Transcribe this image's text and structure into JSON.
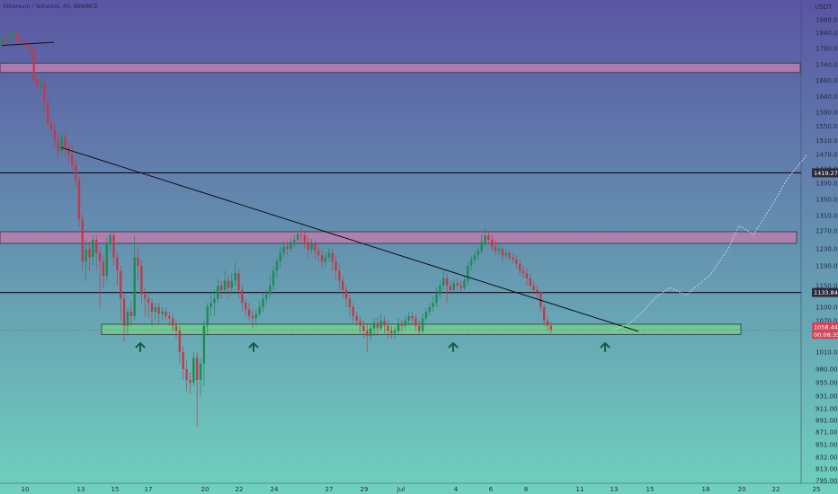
{
  "header": {
    "symbol_line": "Ethereum / TetherUS, 4H, BINANCE",
    "currency": "USDT"
  },
  "colors": {
    "bg_top": "#5a55a3",
    "bg_bottom": "#6fd1bd",
    "up_candle": "#1f8a55",
    "down_candle": "#c03a4c",
    "resistance_zone": "#b77fae",
    "support_zone": "#6fcf8f",
    "level_line": "#0e0e14",
    "trend_line": "#0e0e14",
    "arrow": "#175a4b",
    "price_tag": "#d0465a",
    "level_tag": "#2b2b3b",
    "projection": "#c8d8f0"
  },
  "chart_data": {
    "type": "candlestick",
    "price_scale": {
      "ylim": [
        790,
        1990
      ],
      "tick_labels": [
        "1880.00",
        "1840.00",
        "1790.00",
        "1740.00",
        "1690.00",
        "1640.00",
        "1590.00",
        "1550.00",
        "1510.00",
        "1470.00",
        "1430.00",
        "1390.00",
        "1350.00",
        "1310.00",
        "1270.00",
        "1230.00",
        "1190.00",
        "1150.00",
        "1100.00",
        "1070.00",
        "1040.00",
        "1010.00",
        "980.00",
        "955.00",
        "931.00",
        "911.00",
        "891.00",
        "871.00",
        "851.00",
        "832.00",
        "813.00",
        "795.00"
      ],
      "tick_values": [
        1880,
        1840,
        1790,
        1740,
        1690,
        1640,
        1590,
        1550,
        1510,
        1470,
        1430,
        1390,
        1350,
        1310,
        1270,
        1230,
        1190,
        1150,
        1100,
        1070,
        1040,
        1010,
        980,
        955,
        931,
        911,
        891,
        871,
        851,
        832,
        813,
        795
      ]
    },
    "time_scale": {
      "xlim": [
        0,
        890
      ],
      "tick_labels": [
        "10",
        "13",
        "15",
        "17",
        "20",
        "22",
        "24",
        "27",
        "29",
        "Jul",
        "4",
        "6",
        "8",
        "11",
        "13",
        "15",
        "18",
        "20",
        "22",
        "25"
      ],
      "tick_values": [
        28,
        90,
        128,
        165,
        228,
        266,
        305,
        366,
        405,
        446,
        507,
        546,
        585,
        645,
        683,
        723,
        785,
        825,
        863,
        908
      ]
    },
    "price_tags": [
      {
        "label": "1419.27",
        "value": 1419
      },
      {
        "label": "1133.84",
        "value": 1134
      },
      {
        "label": "1058.44",
        "value": 1058
      },
      {
        "label": "00:08:35",
        "value": 1043
      }
    ],
    "zones": [
      {
        "kind": "resistance",
        "low": 1715,
        "high": 1745,
        "x_start": 0,
        "x_end": 890
      },
      {
        "kind": "resistance",
        "low": 1242,
        "high": 1268,
        "x_start": 0,
        "x_end": 886
      },
      {
        "kind": "support",
        "low": 1043,
        "high": 1063,
        "x_start": 113,
        "x_end": 824
      }
    ],
    "horizontal_levels": [
      1419,
      1134
    ],
    "current_price_line": 1052,
    "trend_lines": [
      {
        "x1": 2,
        "y1": 1800,
        "x2": 60,
        "y2": 1810
      },
      {
        "x1": 68,
        "y1": 1490,
        "x2": 710,
        "y2": 1049
      }
    ],
    "up_arrows": [
      156,
      282,
      504,
      673
    ],
    "projection_path": [
      [
        682,
        1052
      ],
      [
        700,
        1064
      ],
      [
        715,
        1090
      ],
      [
        728,
        1120
      ],
      [
        745,
        1146
      ],
      [
        763,
        1128
      ],
      [
        790,
        1172
      ],
      [
        810,
        1230
      ],
      [
        822,
        1284
      ],
      [
        838,
        1262
      ],
      [
        860,
        1340
      ],
      [
        875,
        1400
      ],
      [
        897,
        1468
      ]
    ],
    "candle_x_start": 3,
    "candle_step": 3.86,
    "candles": [
      [
        1800,
        1820,
        1780,
        1835
      ],
      [
        1820,
        1815,
        1805,
        1830
      ],
      [
        1815,
        1830,
        1806,
        1840
      ],
      [
        1830,
        1840,
        1815,
        1852
      ],
      [
        1840,
        1818,
        1808,
        1848
      ],
      [
        1818,
        1812,
        1800,
        1826
      ],
      [
        1812,
        1808,
        1795,
        1822
      ],
      [
        1808,
        1800,
        1790,
        1815
      ],
      [
        1800,
        1790,
        1760,
        1810
      ],
      [
        1790,
        1690,
        1680,
        1800
      ],
      [
        1690,
        1670,
        1650,
        1705
      ],
      [
        1670,
        1680,
        1650,
        1700
      ],
      [
        1680,
        1620,
        1595,
        1690
      ],
      [
        1620,
        1560,
        1545,
        1630
      ],
      [
        1560,
        1540,
        1520,
        1580
      ],
      [
        1540,
        1510,
        1490,
        1560
      ],
      [
        1510,
        1480,
        1455,
        1530
      ],
      [
        1480,
        1520,
        1470,
        1535
      ],
      [
        1520,
        1490,
        1460,
        1535
      ],
      [
        1490,
        1470,
        1445,
        1505
      ],
      [
        1470,
        1440,
        1425,
        1495
      ],
      [
        1440,
        1400,
        1380,
        1455
      ],
      [
        1400,
        1300,
        1280,
        1410
      ],
      [
        1300,
        1200,
        1180,
        1315
      ],
      [
        1200,
        1230,
        1160,
        1250
      ],
      [
        1230,
        1210,
        1180,
        1245
      ],
      [
        1210,
        1250,
        1190,
        1262
      ],
      [
        1250,
        1220,
        1180,
        1260
      ],
      [
        1220,
        1200,
        1100,
        1235
      ],
      [
        1200,
        1170,
        1145,
        1215
      ],
      [
        1170,
        1240,
        1160,
        1255
      ],
      [
        1240,
        1260,
        1220,
        1270
      ],
      [
        1260,
        1210,
        1190,
        1268
      ],
      [
        1210,
        1180,
        1150,
        1225
      ],
      [
        1180,
        1120,
        1070,
        1190
      ],
      [
        1120,
        1060,
        1030,
        1130
      ],
      [
        1060,
        1090,
        1040,
        1100
      ],
      [
        1090,
        1080,
        1060,
        1115
      ],
      [
        1080,
        1210,
        1070,
        1258
      ],
      [
        1210,
        1190,
        1160,
        1235
      ],
      [
        1190,
        1130,
        1110,
        1205
      ],
      [
        1130,
        1120,
        1080,
        1145
      ],
      [
        1120,
        1110,
        1075,
        1130
      ],
      [
        1110,
        1090,
        1060,
        1120
      ],
      [
        1090,
        1100,
        1070,
        1110
      ],
      [
        1100,
        1085,
        1065,
        1110
      ],
      [
        1085,
        1090,
        1070,
        1100
      ],
      [
        1090,
        1080,
        1070,
        1098
      ],
      [
        1080,
        1075,
        1060,
        1090
      ],
      [
        1075,
        1060,
        1050,
        1085
      ],
      [
        1060,
        1050,
        1035,
        1070
      ],
      [
        1050,
        1010,
        990,
        1060
      ],
      [
        1010,
        980,
        960,
        1020
      ],
      [
        980,
        960,
        940,
        995
      ],
      [
        960,
        955,
        935,
        975
      ],
      [
        955,
        1000,
        950,
        1010
      ],
      [
        1000,
        960,
        880,
        1010
      ],
      [
        960,
        990,
        930,
        1000
      ],
      [
        990,
        1060,
        950,
        1070
      ],
      [
        1060,
        1100,
        1040,
        1110
      ],
      [
        1100,
        1110,
        1080,
        1130
      ],
      [
        1110,
        1120,
        1080,
        1140
      ],
      [
        1120,
        1150,
        1110,
        1165
      ],
      [
        1150,
        1140,
        1120,
        1160
      ],
      [
        1140,
        1160,
        1130,
        1180
      ],
      [
        1160,
        1145,
        1120,
        1170
      ],
      [
        1145,
        1160,
        1130,
        1175
      ],
      [
        1160,
        1175,
        1150,
        1200
      ],
      [
        1175,
        1140,
        1120,
        1185
      ],
      [
        1140,
        1110,
        1090,
        1150
      ],
      [
        1110,
        1095,
        1080,
        1120
      ],
      [
        1095,
        1080,
        1070,
        1110
      ],
      [
        1080,
        1075,
        1055,
        1095
      ],
      [
        1075,
        1085,
        1060,
        1095
      ],
      [
        1085,
        1100,
        1080,
        1115
      ],
      [
        1100,
        1120,
        1090,
        1130
      ],
      [
        1120,
        1130,
        1110,
        1140
      ],
      [
        1130,
        1150,
        1120,
        1170
      ],
      [
        1150,
        1180,
        1140,
        1190
      ],
      [
        1180,
        1200,
        1165,
        1210
      ],
      [
        1200,
        1220,
        1185,
        1235
      ],
      [
        1220,
        1235,
        1210,
        1248
      ],
      [
        1235,
        1230,
        1215,
        1248
      ],
      [
        1230,
        1245,
        1222,
        1255
      ],
      [
        1245,
        1250,
        1232,
        1262
      ],
      [
        1250,
        1262,
        1240,
        1270
      ],
      [
        1262,
        1260,
        1245,
        1278
      ],
      [
        1260,
        1245,
        1230,
        1268
      ],
      [
        1245,
        1228,
        1210,
        1258
      ],
      [
        1228,
        1240,
        1218,
        1252
      ],
      [
        1240,
        1225,
        1205,
        1248
      ],
      [
        1225,
        1215,
        1200,
        1235
      ],
      [
        1215,
        1200,
        1185,
        1225
      ],
      [
        1200,
        1210,
        1190,
        1222
      ],
      [
        1210,
        1220,
        1200,
        1232
      ],
      [
        1220,
        1200,
        1180,
        1230
      ],
      [
        1200,
        1180,
        1160,
        1215
      ],
      [
        1180,
        1160,
        1140,
        1195
      ],
      [
        1160,
        1140,
        1120,
        1170
      ],
      [
        1140,
        1120,
        1100,
        1150
      ],
      [
        1120,
        1100,
        1080,
        1130
      ],
      [
        1100,
        1080,
        1065,
        1110
      ],
      [
        1080,
        1070,
        1060,
        1090
      ],
      [
        1070,
        1060,
        1045,
        1080
      ],
      [
        1060,
        1050,
        1035,
        1070
      ],
      [
        1050,
        1040,
        1010,
        1065
      ],
      [
        1040,
        1055,
        1030,
        1065
      ],
      [
        1055,
        1065,
        1040,
        1075
      ],
      [
        1065,
        1055,
        1040,
        1078
      ],
      [
        1055,
        1070,
        1050,
        1085
      ],
      [
        1070,
        1060,
        1045,
        1080
      ],
      [
        1060,
        1050,
        1035,
        1070
      ],
      [
        1050,
        1045,
        1035,
        1060
      ],
      [
        1045,
        1050,
        1035,
        1058
      ],
      [
        1050,
        1065,
        1045,
        1075
      ],
      [
        1065,
        1060,
        1050,
        1072
      ],
      [
        1060,
        1070,
        1055,
        1082
      ],
      [
        1070,
        1080,
        1060,
        1090
      ],
      [
        1080,
        1075,
        1060,
        1090
      ],
      [
        1075,
        1060,
        1050,
        1085
      ],
      [
        1060,
        1050,
        1040,
        1070
      ],
      [
        1050,
        1075,
        1045,
        1085
      ],
      [
        1075,
        1090,
        1070,
        1100
      ],
      [
        1090,
        1100,
        1080,
        1110
      ],
      [
        1100,
        1110,
        1090,
        1125
      ],
      [
        1110,
        1130,
        1100,
        1145
      ],
      [
        1130,
        1150,
        1120,
        1160
      ],
      [
        1150,
        1165,
        1140,
        1180
      ],
      [
        1165,
        1150,
        1110,
        1175
      ],
      [
        1150,
        1140,
        1130,
        1158
      ],
      [
        1140,
        1155,
        1130,
        1162
      ],
      [
        1155,
        1150,
        1140,
        1165
      ],
      [
        1150,
        1145,
        1135,
        1160
      ],
      [
        1145,
        1160,
        1140,
        1170
      ],
      [
        1160,
        1190,
        1150,
        1200
      ],
      [
        1190,
        1205,
        1180,
        1215
      ],
      [
        1205,
        1215,
        1195,
        1225
      ],
      [
        1215,
        1225,
        1205,
        1235
      ],
      [
        1225,
        1245,
        1220,
        1262
      ],
      [
        1245,
        1260,
        1235,
        1278
      ],
      [
        1260,
        1250,
        1240,
        1268
      ],
      [
        1250,
        1235,
        1225,
        1262
      ],
      [
        1235,
        1225,
        1215,
        1250
      ],
      [
        1225,
        1230,
        1215,
        1240
      ],
      [
        1230,
        1215,
        1200,
        1235
      ],
      [
        1215,
        1220,
        1205,
        1230
      ],
      [
        1220,
        1210,
        1200,
        1228
      ],
      [
        1210,
        1205,
        1195,
        1220
      ],
      [
        1205,
        1195,
        1185,
        1215
      ],
      [
        1195,
        1180,
        1170,
        1205
      ],
      [
        1180,
        1175,
        1165,
        1190
      ],
      [
        1175,
        1165,
        1150,
        1185
      ],
      [
        1165,
        1150,
        1140,
        1175
      ],
      [
        1150,
        1140,
        1130,
        1158
      ],
      [
        1140,
        1135,
        1120,
        1150
      ],
      [
        1135,
        1100,
        1090,
        1140
      ],
      [
        1100,
        1070,
        1060,
        1108
      ],
      [
        1070,
        1060,
        1050,
        1080
      ],
      [
        1060,
        1052,
        1045,
        1068
      ]
    ]
  }
}
